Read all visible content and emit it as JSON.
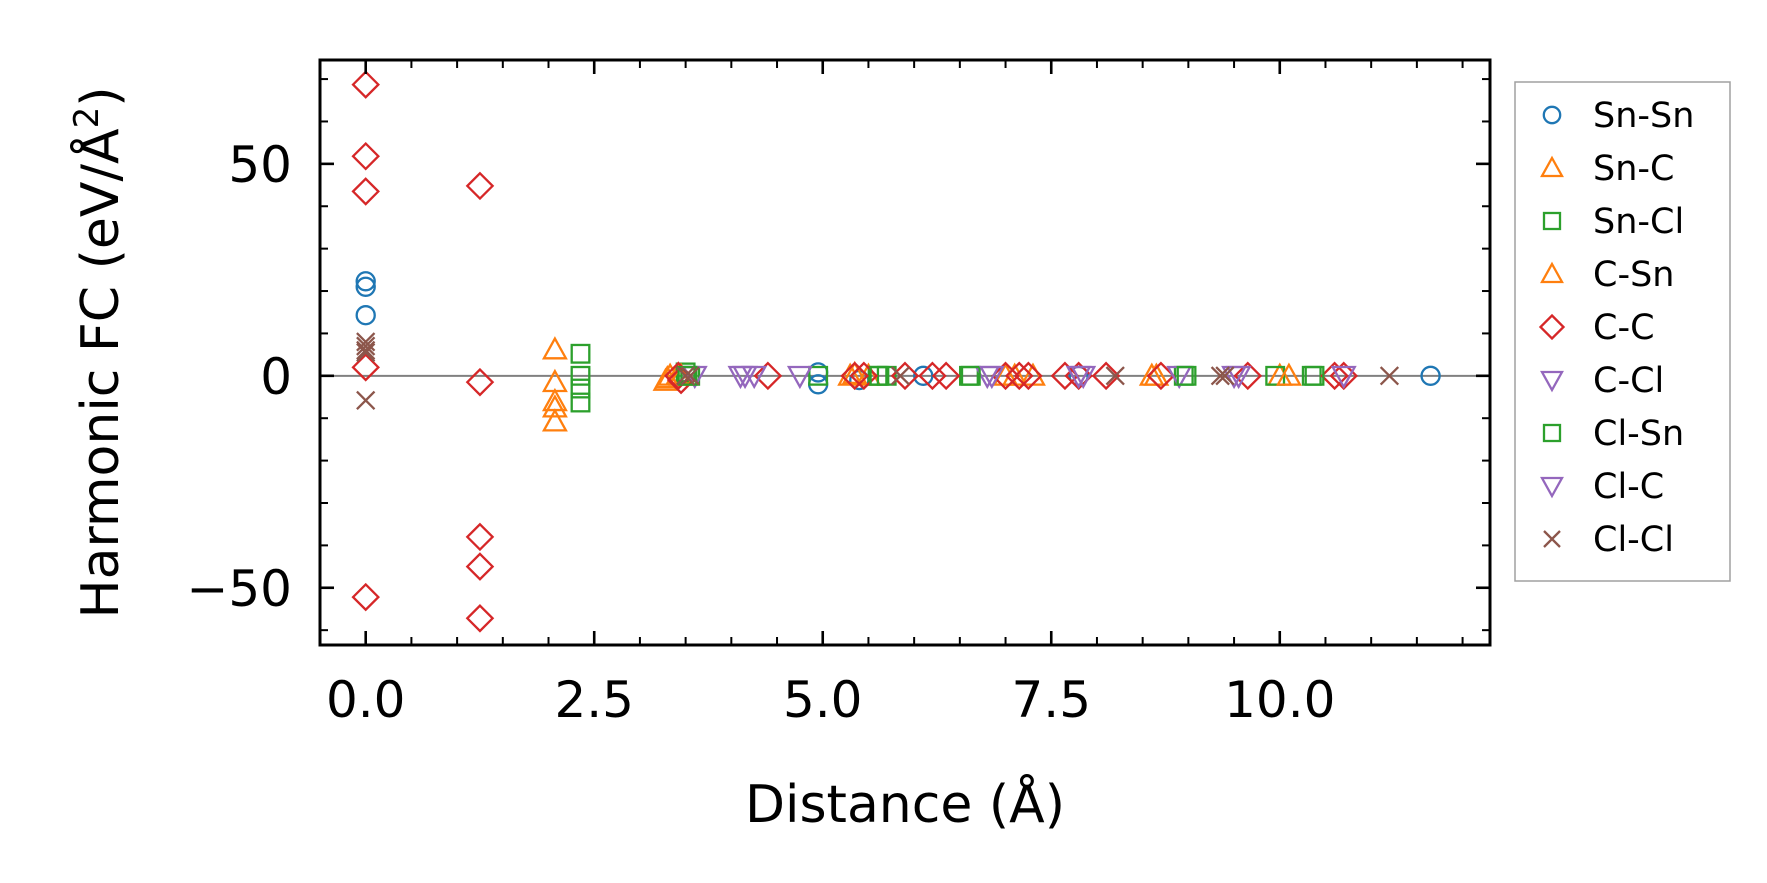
{
  "chart_data": {
    "type": "scatter",
    "title": "",
    "xlabel": "Distance (Å)",
    "ylabel": "Harmonic FC (eV/Å²)",
    "ylabel_base": "Harmonic FC (eV/Å",
    "ylabel_sup": "2",
    "ylabel_close": ")",
    "xlim": [
      -0.5,
      12.3
    ],
    "ylim": [
      -63.5,
      74.5
    ],
    "xticks": [
      0.0,
      2.5,
      5.0,
      7.5,
      10.0
    ],
    "xtick_labels": [
      "0.0",
      "2.5",
      "5.0",
      "7.5",
      "10.0"
    ],
    "yticks": [
      -50,
      0,
      50
    ],
    "ytick_labels": [
      "−50",
      "0",
      "50"
    ],
    "zero_line": true,
    "legend_position": "outside-right",
    "series": [
      {
        "name": "Sn-Sn",
        "marker": "circle",
        "color": "#1f77b4",
        "points": [
          [
            0.0,
            22.3
          ],
          [
            0.0,
            21.0
          ],
          [
            0.0,
            14.3
          ],
          [
            4.95,
            0.8
          ],
          [
            4.95,
            -2.0
          ],
          [
            5.4,
            -1.0
          ],
          [
            6.1,
            0.0
          ],
          [
            7.8,
            0.0
          ],
          [
            11.65,
            0.0
          ]
        ]
      },
      {
        "name": "Sn-C",
        "marker": "triangle-up",
        "color": "#ff7f0e",
        "points": [
          [
            2.07,
            6.2
          ],
          [
            2.07,
            -1.5
          ],
          [
            2.07,
            -6.0
          ],
          [
            2.07,
            -7.5
          ],
          [
            2.07,
            -10.8
          ],
          [
            3.28,
            -1.2
          ],
          [
            3.33,
            0.0
          ],
          [
            3.42,
            0.3
          ],
          [
            5.3,
            0.0
          ],
          [
            5.5,
            0.0
          ],
          [
            7.1,
            0.0
          ],
          [
            7.3,
            0.0
          ],
          [
            8.6,
            0.0
          ],
          [
            10.0,
            0.0
          ]
        ]
      },
      {
        "name": "Sn-Cl",
        "marker": "square",
        "color": "#2ca02c",
        "points": [
          [
            2.35,
            5.2
          ],
          [
            2.35,
            0.0
          ],
          [
            2.35,
            -3.0
          ],
          [
            2.35,
            -6.3
          ],
          [
            3.5,
            0.8
          ],
          [
            3.55,
            0.0
          ],
          [
            4.95,
            0.0
          ],
          [
            5.6,
            0.0
          ],
          [
            5.7,
            0.0
          ],
          [
            6.6,
            0.0
          ],
          [
            8.95,
            0.0
          ],
          [
            9.95,
            0.0
          ],
          [
            10.35,
            0.0
          ]
        ]
      },
      {
        "name": "C-Sn",
        "marker": "triangle-up",
        "color": "#ff7f0e",
        "points": [
          [
            3.3,
            -0.6
          ],
          [
            3.45,
            0.0
          ],
          [
            5.35,
            0.4
          ],
          [
            7.0,
            0.0
          ],
          [
            8.65,
            0.0
          ],
          [
            10.1,
            0.0
          ]
        ]
      },
      {
        "name": "C-C",
        "marker": "diamond",
        "color": "#d62728",
        "points": [
          [
            0.0,
            68.7
          ],
          [
            0.0,
            51.8
          ],
          [
            0.0,
            43.5
          ],
          [
            0.0,
            2.0
          ],
          [
            0.0,
            -52.2
          ],
          [
            1.25,
            44.8
          ],
          [
            1.25,
            -1.5
          ],
          [
            1.25,
            -38.0
          ],
          [
            1.25,
            -45.0
          ],
          [
            1.25,
            -57.2
          ],
          [
            3.42,
            0.0
          ],
          [
            3.45,
            -1.0
          ],
          [
            4.4,
            0.0
          ],
          [
            5.35,
            0.0
          ],
          [
            5.45,
            0.0
          ],
          [
            5.9,
            0.0
          ],
          [
            6.2,
            0.0
          ],
          [
            6.35,
            0.0
          ],
          [
            7.0,
            0.0
          ],
          [
            7.15,
            0.0
          ],
          [
            7.25,
            0.0
          ],
          [
            7.65,
            0.0
          ],
          [
            7.8,
            0.0
          ],
          [
            8.1,
            0.0
          ],
          [
            8.7,
            0.0
          ],
          [
            9.65,
            0.0
          ],
          [
            10.6,
            0.0
          ],
          [
            10.7,
            0.0
          ]
        ]
      },
      {
        "name": "C-Cl",
        "marker": "triangle-down",
        "color": "#9467bd",
        "points": [
          [
            3.6,
            0.0
          ],
          [
            4.15,
            0.0
          ],
          [
            4.25,
            0.0
          ],
          [
            4.75,
            0.0
          ],
          [
            6.8,
            0.0
          ],
          [
            7.8,
            0.0
          ],
          [
            8.9,
            0.0
          ],
          [
            9.5,
            0.0
          ],
          [
            10.7,
            0.0
          ]
        ]
      },
      {
        "name": "Cl-Sn",
        "marker": "square",
        "color": "#2ca02c",
        "points": [
          [
            3.52,
            0.0
          ],
          [
            5.62,
            0.0
          ],
          [
            6.62,
            0.0
          ],
          [
            8.98,
            0.0
          ],
          [
            10.38,
            0.0
          ]
        ]
      },
      {
        "name": "Cl-C",
        "marker": "triangle-down",
        "color": "#9467bd",
        "points": [
          [
            4.1,
            0.0
          ],
          [
            6.85,
            0.0
          ],
          [
            7.85,
            0.0
          ],
          [
            9.55,
            0.0
          ]
        ]
      },
      {
        "name": "Cl-Cl",
        "marker": "x",
        "color": "#8c564b",
        "points": [
          [
            0.0,
            8.0
          ],
          [
            0.0,
            7.0
          ],
          [
            0.0,
            6.0
          ],
          [
            0.0,
            5.5
          ],
          [
            0.0,
            -5.8
          ],
          [
            3.5,
            0.0
          ],
          [
            3.55,
            0.0
          ],
          [
            5.85,
            0.0
          ],
          [
            8.2,
            0.0
          ],
          [
            9.35,
            0.0
          ],
          [
            9.4,
            0.0
          ],
          [
            11.2,
            0.0
          ]
        ]
      }
    ]
  }
}
